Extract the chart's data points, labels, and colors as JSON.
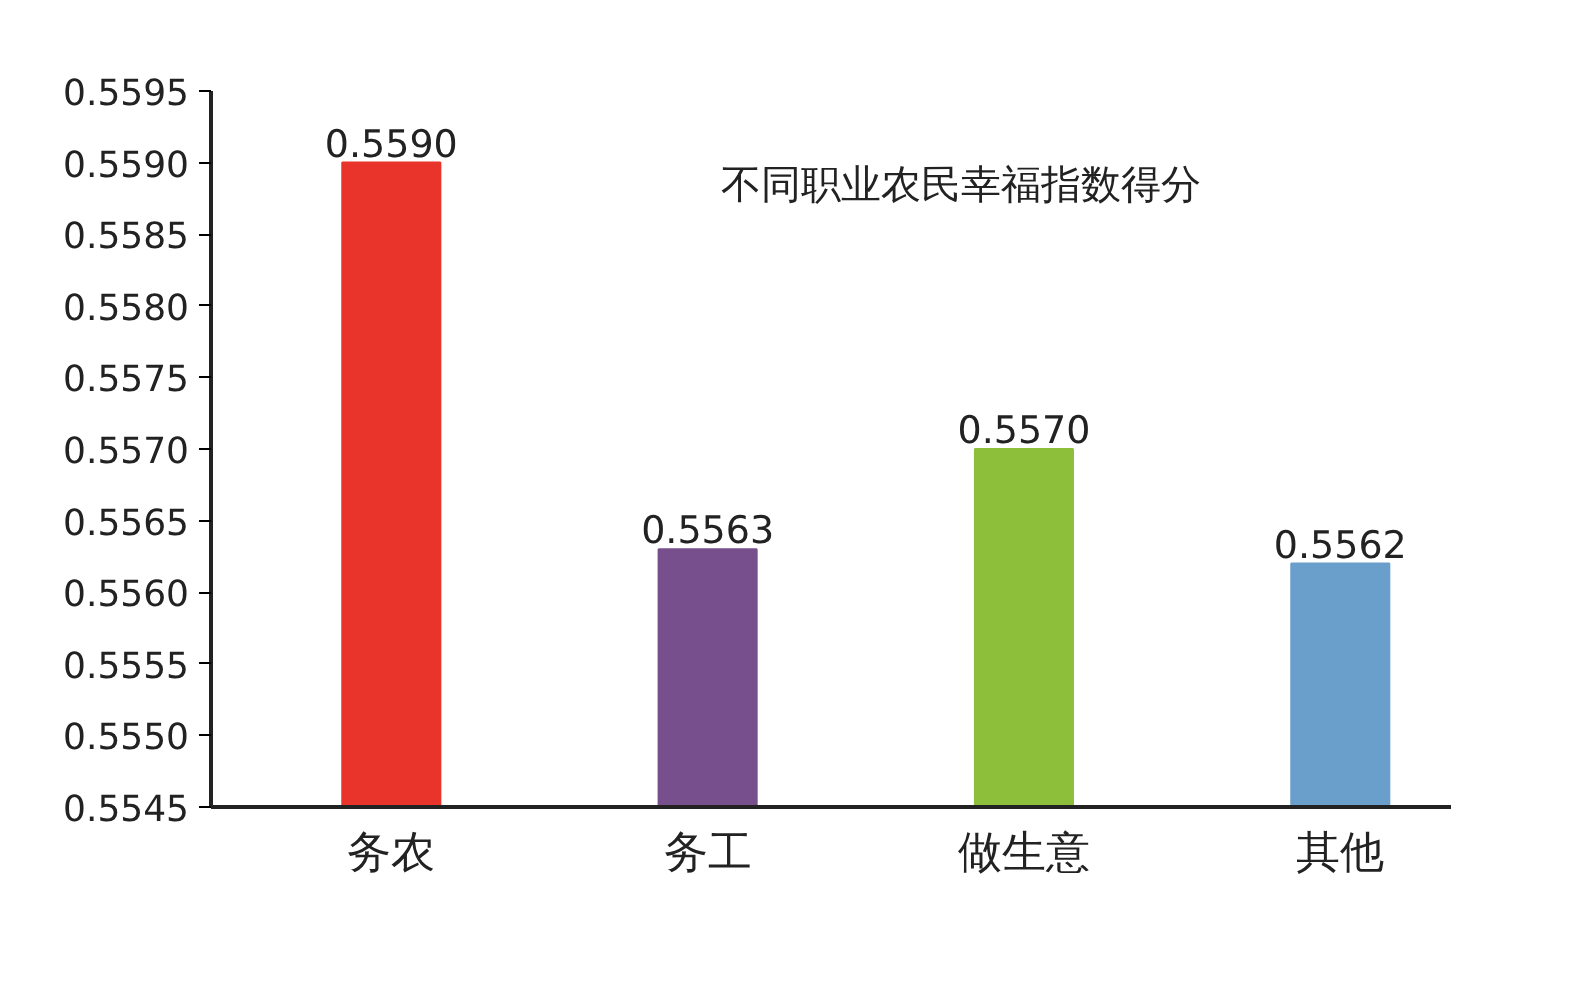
{
  "chart_data": {
    "type": "bar",
    "title": "不同职业农民幸福指数得分",
    "categories": [
      "务农",
      "务工",
      "做生意",
      "其他"
    ],
    "values": [
      0.559,
      0.5563,
      0.557,
      0.5562
    ],
    "value_labels": [
      "0.5590",
      "0.5563",
      "0.5570",
      "0.5562"
    ],
    "colors": [
      "#e8342a",
      "#774f8c",
      "#8dbf3a",
      "#6a9ecb"
    ],
    "ylim": [
      0.5545,
      0.5595
    ],
    "yticks": [
      0.5545,
      {
        "value": 0.555,
        "label": "0.5550"
      },
      0.5555,
      {
        "value": 0.556,
        "label": "0.5560"
      },
      0.5565,
      {
        "value": 0.557,
        "label": "0.5570"
      },
      0.5575,
      {
        "value": 0.558,
        "label": "0.5580"
      },
      0.5585,
      {
        "value": 0.559,
        "label": "0.5590"
      },
      0.5595
    ],
    "grid": false
  }
}
